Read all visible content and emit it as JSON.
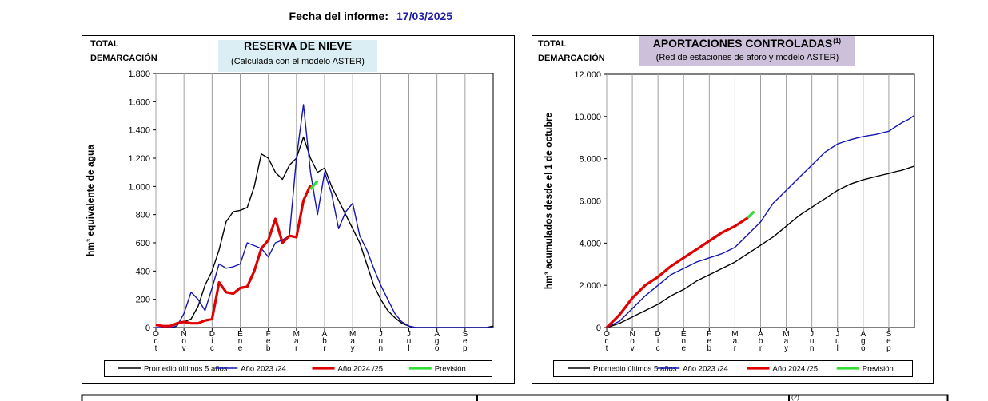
{
  "report": {
    "label": "Fecha del informe:",
    "date": "17/03/2025"
  },
  "table_note": "(2)",
  "chart_data": [
    {
      "type": "line",
      "corner_label": [
        "TOTAL",
        "DEMARCACIÓN"
      ],
      "title": "RESERVA DE NIEVE",
      "subtitle": "(Calculada con el modelo ASTER)",
      "y_label": "hm³ equivalente de agua",
      "grid": "x",
      "legend": "bottom",
      "xlim": [
        0,
        12
      ],
      "ylim": [
        0,
        1800
      ],
      "xticks": [
        {
          "value": 0,
          "label": "Oct"
        },
        {
          "value": 1,
          "label": "Nov"
        },
        {
          "value": 2,
          "label": "Dic"
        },
        {
          "value": 3,
          "label": "Ene"
        },
        {
          "value": 4,
          "label": "Feb"
        },
        {
          "value": 5,
          "label": "Mar"
        },
        {
          "value": 6,
          "label": "Abr"
        },
        {
          "value": 7,
          "label": "May"
        },
        {
          "value": 8,
          "label": "Jun"
        },
        {
          "value": 9,
          "label": "Jul"
        },
        {
          "value": 10,
          "label": "Ago"
        },
        {
          "value": 11,
          "label": "Sep"
        }
      ],
      "yticks": [
        0,
        200,
        400,
        600,
        800,
        {
          "value": 1000,
          "label": "1.000"
        },
        {
          "value": 1200,
          "label": "1.200"
        },
        {
          "value": 1400,
          "label": "1.400"
        },
        {
          "value": 1600,
          "label": "1.600"
        },
        {
          "value": 1800,
          "label": "1.800"
        }
      ],
      "x": [
        0,
        0.25,
        0.5,
        0.75,
        1,
        1.25,
        1.5,
        1.75,
        2,
        2.25,
        2.5,
        2.75,
        3,
        3.25,
        3.5,
        3.75,
        4,
        4.25,
        4.5,
        4.75,
        5,
        5.25,
        5.5,
        5.75,
        6,
        6.25,
        6.5,
        6.75,
        7,
        7.25,
        7.5,
        7.75,
        8,
        8.25,
        8.5,
        8.75,
        9,
        9.25,
        9.5,
        9.75,
        10,
        10.25,
        10.5,
        10.75,
        11,
        11.25,
        11.5,
        11.75,
        12
      ],
      "series": [
        {
          "name": "Promedio últimos 5 años",
          "color": "#000000",
          "line_width": 1.4,
          "values": [
            20,
            10,
            10,
            20,
            40,
            60,
            150,
            300,
            400,
            550,
            750,
            820,
            830,
            850,
            1000,
            1230,
            1200,
            1100,
            1050,
            1150,
            1200,
            1350,
            1200,
            1100,
            1130,
            1000,
            900,
            800,
            700,
            600,
            450,
            300,
            200,
            120,
            70,
            30,
            10,
            0,
            0,
            0,
            0,
            0,
            0,
            0,
            0,
            0,
            0,
            0,
            10
          ]
        },
        {
          "name": "Año 2023 /24",
          "color": "#1414b4",
          "line_width": 1.4,
          "values": [
            0,
            0,
            0,
            10,
            100,
            250,
            200,
            120,
            280,
            450,
            420,
            430,
            450,
            600,
            580,
            560,
            500,
            600,
            620,
            650,
            1200,
            1580,
            1100,
            800,
            1100,
            950,
            700,
            820,
            880,
            650,
            550,
            420,
            300,
            200,
            100,
            40,
            10,
            0,
            0,
            0,
            0,
            0,
            0,
            0,
            0,
            0,
            0,
            0,
            0
          ]
        },
        {
          "name": "Año 2024 /25",
          "color": "#e00000",
          "line_width": 3.2,
          "values": [
            20,
            10,
            10,
            30,
            40,
            30,
            30,
            50,
            60,
            320,
            250,
            240,
            280,
            290,
            400,
            560,
            620,
            770,
            600,
            650,
            640,
            900,
            1010,
            null,
            null,
            null,
            null,
            null,
            null,
            null,
            null,
            null,
            null,
            null,
            null,
            null,
            null,
            null,
            null,
            null,
            null,
            null,
            null,
            null,
            null,
            null,
            null,
            null,
            null
          ]
        },
        {
          "name": "Previsión",
          "color": "#33dd33",
          "line_width": 3.2,
          "values": [
            null,
            null,
            null,
            null,
            null,
            null,
            null,
            null,
            null,
            null,
            null,
            null,
            null,
            null,
            null,
            null,
            null,
            null,
            null,
            null,
            null,
            null,
            980,
            1040,
            null,
            null,
            null,
            null,
            null,
            null,
            null,
            null,
            null,
            null,
            null,
            null,
            null,
            null,
            null,
            null,
            null,
            null,
            null,
            null,
            null,
            null,
            null,
            null,
            null
          ]
        }
      ]
    },
    {
      "type": "line",
      "corner_label": [
        "TOTAL",
        "DEMARCACIÓN"
      ],
      "title": "APORTACIONES CONTROLADAS",
      "title_sup": "(1)",
      "subtitle": "(Red de estaciones de aforo y modelo ASTER)",
      "y_label": "hm³ acumulados desde el 1 de octubre",
      "grid": "x",
      "legend": "bottom",
      "xlim": [
        0,
        12
      ],
      "ylim": [
        0,
        12000
      ],
      "xticks": [
        {
          "value": 0,
          "label": "Oct"
        },
        {
          "value": 1,
          "label": "Nov"
        },
        {
          "value": 2,
          "label": "Dic"
        },
        {
          "value": 3,
          "label": "Ene"
        },
        {
          "value": 4,
          "label": "Feb"
        },
        {
          "value": 5,
          "label": "Mar"
        },
        {
          "value": 6,
          "label": "Abr"
        },
        {
          "value": 7,
          "label": "May"
        },
        {
          "value": 8,
          "label": "Jun"
        },
        {
          "value": 9,
          "label": "Jul"
        },
        {
          "value": 10,
          "label": "Ago"
        },
        {
          "value": 11,
          "label": "Sep"
        }
      ],
      "yticks": [
        0,
        {
          "value": 2000,
          "label": "2.000"
        },
        {
          "value": 4000,
          "label": "4.000"
        },
        {
          "value": 6000,
          "label": "6.000"
        },
        {
          "value": 8000,
          "label": "8.000"
        },
        {
          "value": 10000,
          "label": "10.000"
        },
        {
          "value": 12000,
          "label": "12.000"
        }
      ],
      "x": [
        0,
        0.25,
        0.5,
        0.75,
        1,
        1.25,
        1.5,
        1.75,
        2,
        2.25,
        2.5,
        2.75,
        3,
        3.25,
        3.5,
        3.75,
        4,
        4.25,
        4.5,
        4.75,
        5,
        5.25,
        5.5,
        5.75,
        6,
        6.25,
        6.5,
        6.75,
        7,
        7.25,
        7.5,
        7.75,
        8,
        8.25,
        8.5,
        8.75,
        9,
        9.25,
        9.5,
        9.75,
        10,
        10.25,
        10.5,
        10.75,
        11,
        11.25,
        11.5,
        11.75,
        12
      ],
      "series": [
        {
          "name": "Promedio últimos 5 años",
          "color": "#000000",
          "line_width": 1.4,
          "values": [
            0,
            100,
            200,
            350,
            500,
            650,
            800,
            950,
            1100,
            1300,
            1500,
            1650,
            1800,
            2000,
            2200,
            2350,
            2500,
            2650,
            2800,
            2950,
            3100,
            3300,
            3500,
            3700,
            3900,
            4100,
            4300,
            4550,
            4800,
            5050,
            5300,
            5500,
            5700,
            5900,
            6100,
            6300,
            6500,
            6650,
            6800,
            6900,
            7000,
            7080,
            7150,
            7230,
            7300,
            7380,
            7450,
            7550,
            7650
          ]
        },
        {
          "name": "Año 2023 /24",
          "color": "#1414b4",
          "line_width": 1.4,
          "values": [
            0,
            150,
            300,
            600,
            900,
            1200,
            1500,
            1750,
            2000,
            2250,
            2500,
            2650,
            2800,
            2950,
            3100,
            3200,
            3300,
            3400,
            3500,
            3650,
            3800,
            4100,
            4400,
            4700,
            5000,
            5450,
            5900,
            6200,
            6500,
            6800,
            7100,
            7400,
            7700,
            8000,
            8300,
            8500,
            8700,
            8800,
            8900,
            8980,
            9050,
            9100,
            9150,
            9230,
            9300,
            9500,
            9700,
            9850,
            10050
          ]
        },
        {
          "name": "Año 2024 /25",
          "color": "#e00000",
          "line_width": 3.2,
          "values": [
            0,
            300,
            600,
            1000,
            1400,
            1700,
            2000,
            2200,
            2400,
            2650,
            2900,
            3100,
            3300,
            3500,
            3700,
            3900,
            4100,
            4300,
            4500,
            4650,
            4800,
            5000,
            5200,
            null,
            null,
            null,
            null,
            null,
            null,
            null,
            null,
            null,
            null,
            null,
            null,
            null,
            null,
            null,
            null,
            null,
            null,
            null,
            null,
            null,
            null,
            null,
            null,
            null,
            null
          ]
        },
        {
          "name": "Previsión",
          "color": "#33dd33",
          "line_width": 3.2,
          "values": [
            null,
            null,
            null,
            null,
            null,
            null,
            null,
            null,
            null,
            null,
            null,
            null,
            null,
            null,
            null,
            null,
            null,
            null,
            null,
            null,
            null,
            null,
            5200,
            5500,
            null,
            null,
            null,
            null,
            null,
            null,
            null,
            null,
            null,
            null,
            null,
            null,
            null,
            null,
            null,
            null,
            null,
            null,
            null,
            null,
            null,
            null,
            null,
            null,
            null
          ]
        }
      ]
    }
  ]
}
